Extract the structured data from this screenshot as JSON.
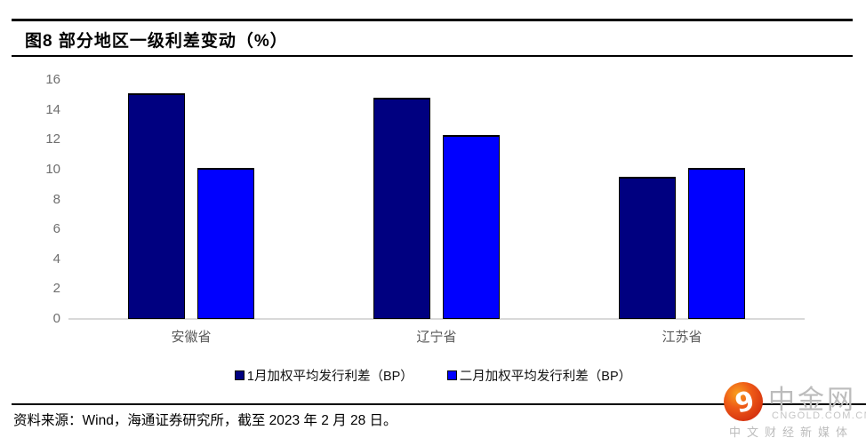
{
  "header": {
    "title": "图8  部分地区一级利差变动（%）"
  },
  "chart_data": {
    "type": "bar",
    "title": "部分地区一级利差变动（%）",
    "categories": [
      "安徽省",
      "辽宁省",
      "江苏省"
    ],
    "series": [
      {
        "name": "1月加权平均发行利差（BP）",
        "color": "#000080",
        "values": [
          15.1,
          14.8,
          9.5
        ]
      },
      {
        "name": "二月加权平均发行利差（BP）",
        "color": "#0000ff",
        "values": [
          10.1,
          12.3,
          10.1
        ]
      }
    ],
    "xlabel": "",
    "ylabel": "",
    "ylim": [
      0,
      16
    ],
    "yticks": [
      0,
      2,
      4,
      6,
      8,
      10,
      12,
      14,
      16
    ],
    "grid": false,
    "legend_position": "bottom"
  },
  "footer": {
    "source_text": "资料来源：Wind，海通证券研究所，截至 2023 年 2 月 28 日。"
  },
  "logo": {
    "name": "中金网",
    "domain": "CNGOLD.COM.CN",
    "tagline": "中文财经新媒体"
  },
  "colors": {
    "series1": "#000080",
    "series2": "#0000ff",
    "axis_text": "#6e6e6e",
    "category_text": "#595959",
    "gridline": "#d9d9d9",
    "rule": "#000000",
    "logo_red": "#d93916",
    "logo_gray": "#bcbcbc"
  }
}
